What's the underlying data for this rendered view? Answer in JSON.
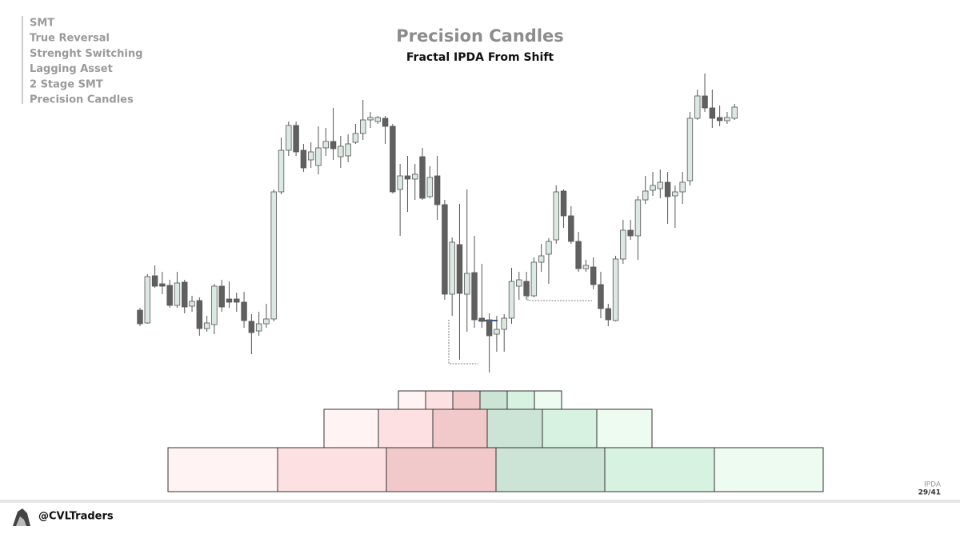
{
  "nav": {
    "items": [
      "SMT",
      "True Reversal",
      "Strenght Switching",
      "Lagging Asset",
      "2 Stage SMT",
      "Precision Candles"
    ],
    "active": 5
  },
  "header": {
    "title": "Precision Candles",
    "subtitle": "Fractal IPDA From Shift"
  },
  "footer": {
    "handle": "@CVLTraders",
    "section": "IPDA",
    "page": "29/41"
  },
  "chart_data": {
    "type": "candlestick",
    "up_color": "#dce9e2",
    "down_color": "#606060",
    "ylim": [
      0,
      400
    ],
    "open": [
      92,
      76,
      135,
      125,
      123,
      98,
      127,
      97,
      104,
      69,
      74,
      122,
      106,
      106,
      102,
      78,
      66,
      75,
      81,
      240,
      292,
      323,
      292,
      280,
      273,
      295,
      303,
      284,
      285,
      302,
      313,
      330,
      328,
      332,
      322,
      243,
      260,
      256,
      284,
      234,
      260,
      224,
      112,
      174,
      112,
      139,
      82,
      80,
      62,
      68,
      82,
      122,
      128,
      110,
      152,
      162,
      180,
      241,
      210,
      178,
      144,
      146,
      124,
      94,
      79,
      156,
      192,
      185,
      230,
      242,
      244,
      252,
      235,
      240,
      254,
      332,
      360,
      345,
      333,
      329,
      332
    ],
    "high": [
      95,
      137,
      148,
      140,
      130,
      140,
      130,
      110,
      108,
      85,
      125,
      130,
      128,
      114,
      115,
      87,
      90,
      100,
      243,
      308,
      328,
      328,
      300,
      302,
      322,
      320,
      345,
      310,
      312,
      325,
      355,
      340,
      335,
      335,
      325,
      275,
      285,
      275,
      295,
      272,
      285,
      230,
      183,
      225,
      243,
      185,
      150,
      88,
      85,
      87,
      145,
      140,
      140,
      158,
      175,
      182,
      248,
      243,
      222,
      190,
      155,
      158,
      140,
      100,
      160,
      205,
      205,
      235,
      260,
      265,
      268,
      265,
      248,
      265,
      340,
      368,
      388,
      368,
      348,
      340,
      350
    ],
    "low": [
      72,
      75,
      120,
      112,
      95,
      95,
      88,
      90,
      60,
      65,
      62,
      90,
      95,
      90,
      70,
      37,
      60,
      70,
      78,
      237,
      285,
      285,
      265,
      270,
      262,
      285,
      280,
      270,
      277,
      300,
      305,
      320,
      325,
      300,
      238,
      185,
      215,
      230,
      230,
      232,
      205,
      105,
      85,
      30,
      65,
      70,
      70,
      14,
      40,
      40,
      75,
      105,
      105,
      108,
      140,
      125,
      175,
      195,
      175,
      140,
      140,
      118,
      82,
      72,
      78,
      150,
      180,
      155,
      225,
      235,
      232,
      200,
      195,
      225,
      248,
      330,
      340,
      320,
      322,
      325,
      330
    ],
    "close": [
      75,
      134,
      122,
      122,
      98,
      126,
      96,
      103,
      69,
      76,
      122,
      96,
      102,
      102,
      79,
      64,
      75,
      81,
      240,
      292,
      323,
      290,
      270,
      290,
      295,
      303,
      294,
      297,
      300,
      313,
      330,
      333,
      333,
      322,
      240,
      260,
      256,
      262,
      232,
      258,
      224,
      112,
      177,
      113,
      138,
      80,
      78,
      60,
      68,
      82,
      128,
      130,
      110,
      152,
      160,
      178,
      240,
      210,
      178,
      144,
      148,
      124,
      94,
      80,
      156,
      192,
      185,
      230,
      241,
      248,
      252,
      234,
      240,
      252,
      332,
      360,
      345,
      332,
      329,
      333,
      346
    ]
  }
}
